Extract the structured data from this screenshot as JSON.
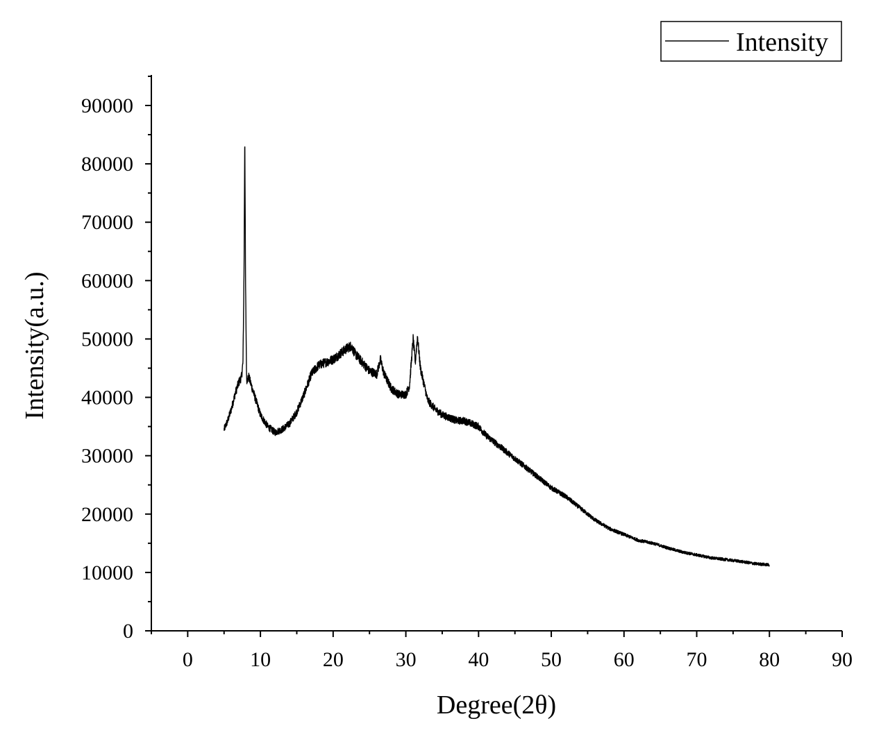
{
  "chart_data": {
    "type": "line",
    "title": "",
    "xlabel": "Degree(2θ)",
    "ylabel": "Intensity(a.u.)",
    "xlim": [
      -5,
      90
    ],
    "ylim": [
      0,
      95000
    ],
    "x_ticks": [
      "0",
      "10",
      "20",
      "30",
      "40",
      "50",
      "60",
      "70",
      "80",
      "90"
    ],
    "y_ticks": [
      "0",
      "10000",
      "20000",
      "30000",
      "40000",
      "50000",
      "60000",
      "70000",
      "80000",
      "90000"
    ],
    "legend": {
      "position": "top-right",
      "entries": [
        "Intensity"
      ]
    },
    "grid": false,
    "series": [
      {
        "name": "Intensity",
        "color": "#000000",
        "x": [
          5,
          5.5,
          6,
          6.5,
          7,
          7.4,
          7.6,
          7.75,
          7.85,
          7.95,
          8.1,
          8.4,
          9,
          10,
          11,
          12,
          13,
          14,
          15,
          16,
          17,
          18,
          19,
          20,
          21,
          22,
          22.5,
          23,
          24,
          25,
          26,
          26.5,
          27,
          28,
          29,
          30,
          30.5,
          31,
          31.3,
          31.6,
          32,
          33,
          34,
          35,
          36,
          37,
          38,
          39,
          40,
          41,
          42,
          44,
          46,
          48,
          50,
          52,
          54,
          56,
          58,
          60,
          62,
          64,
          66,
          68,
          70,
          72,
          74,
          76,
          78,
          80
        ],
        "values": [
          34500,
          36000,
          38000,
          40500,
          42500,
          43500,
          46000,
          62000,
          86000,
          60000,
          43000,
          43500,
          41000,
          37000,
          35000,
          34000,
          34500,
          35500,
          37500,
          40500,
          44000,
          45500,
          46000,
          46500,
          47500,
          48500,
          48800,
          47500,
          46000,
          44500,
          44000,
          46500,
          44000,
          41500,
          40500,
          40500,
          42000,
          50000,
          46000,
          50500,
          45000,
          39500,
          38000,
          37000,
          36500,
          36000,
          36000,
          35500,
          35000,
          33500,
          32500,
          30500,
          28500,
          26500,
          24500,
          23000,
          21000,
          19000,
          17500,
          16500,
          15500,
          15000,
          14200,
          13500,
          13000,
          12500,
          12200,
          11900,
          11500,
          11300
        ]
      }
    ]
  }
}
